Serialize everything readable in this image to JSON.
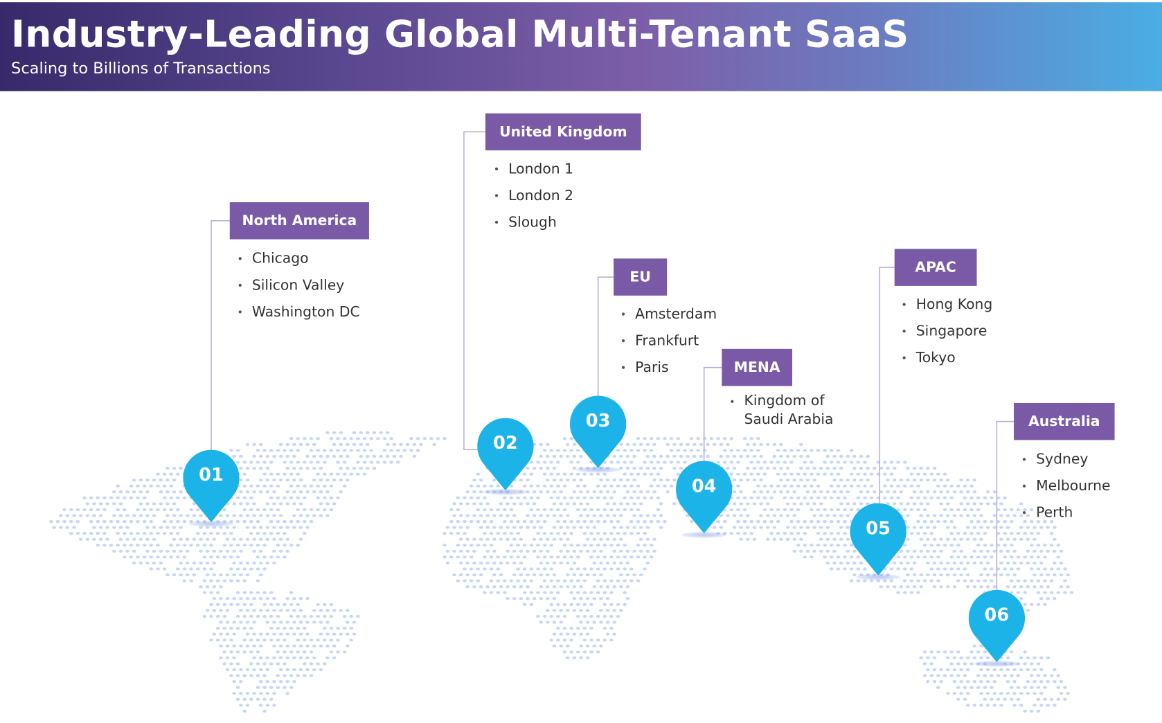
{
  "header": {
    "title": "Industry-Leading Global Multi-Tenant SaaS",
    "subtitle": "Scaling to Billions of Transactions"
  },
  "colors": {
    "region_box": "#7a5aa6",
    "pin": "#1bb3e8",
    "map_dots": "#c8d6f4",
    "connector": "#b9a9d6"
  },
  "regions": [
    {
      "number": "01",
      "name": "North America",
      "sites": [
        "Chicago",
        "Silicon Valley",
        "Washington DC"
      ]
    },
    {
      "number": "02",
      "name": "United Kingdom",
      "sites": [
        "London 1",
        "London 2",
        "Slough"
      ]
    },
    {
      "number": "03",
      "name": "EU",
      "sites": [
        "Amsterdam",
        "Frankfurt",
        "Paris"
      ]
    },
    {
      "number": "04",
      "name": "MENA",
      "sites": [
        "Kingdom of Saudi Arabia"
      ]
    },
    {
      "number": "05",
      "name": "APAC",
      "sites": [
        "Hong Kong",
        "Singapore",
        "Tokyo"
      ]
    },
    {
      "number": "06",
      "name": "Australia",
      "sites": [
        "Sydney",
        "Melbourne",
        "Perth"
      ]
    }
  ]
}
